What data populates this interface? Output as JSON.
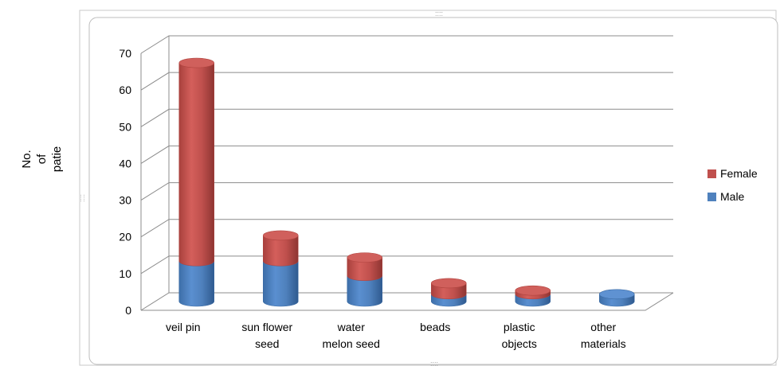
{
  "chart_data": {
    "type": "bar",
    "stacked": true,
    "three_d": true,
    "title": "",
    "xlabel": "",
    "ylabel": [
      "No.",
      "of",
      "patie"
    ],
    "ylim": [
      0,
      70
    ],
    "yticks": [
      0,
      10,
      20,
      30,
      40,
      50,
      60,
      70
    ],
    "categories": [
      [
        "veil pin"
      ],
      [
        "sun flower",
        "seed"
      ],
      [
        "water",
        "melon seed"
      ],
      [
        "beads"
      ],
      [
        "plastic",
        "objects"
      ],
      [
        "other",
        "materials"
      ]
    ],
    "series": [
      {
        "name": "Male",
        "values": [
          11,
          11,
          7,
          2,
          2,
          2
        ]
      },
      {
        "name": "Female",
        "values": [
          54,
          7,
          5,
          3,
          1,
          0
        ]
      }
    ],
    "legend": {
      "position": "right",
      "order": [
        "Female",
        "Male"
      ]
    },
    "colors": {
      "Male": "#4f81bd",
      "Female": "#c0504d"
    },
    "grid": true
  }
}
